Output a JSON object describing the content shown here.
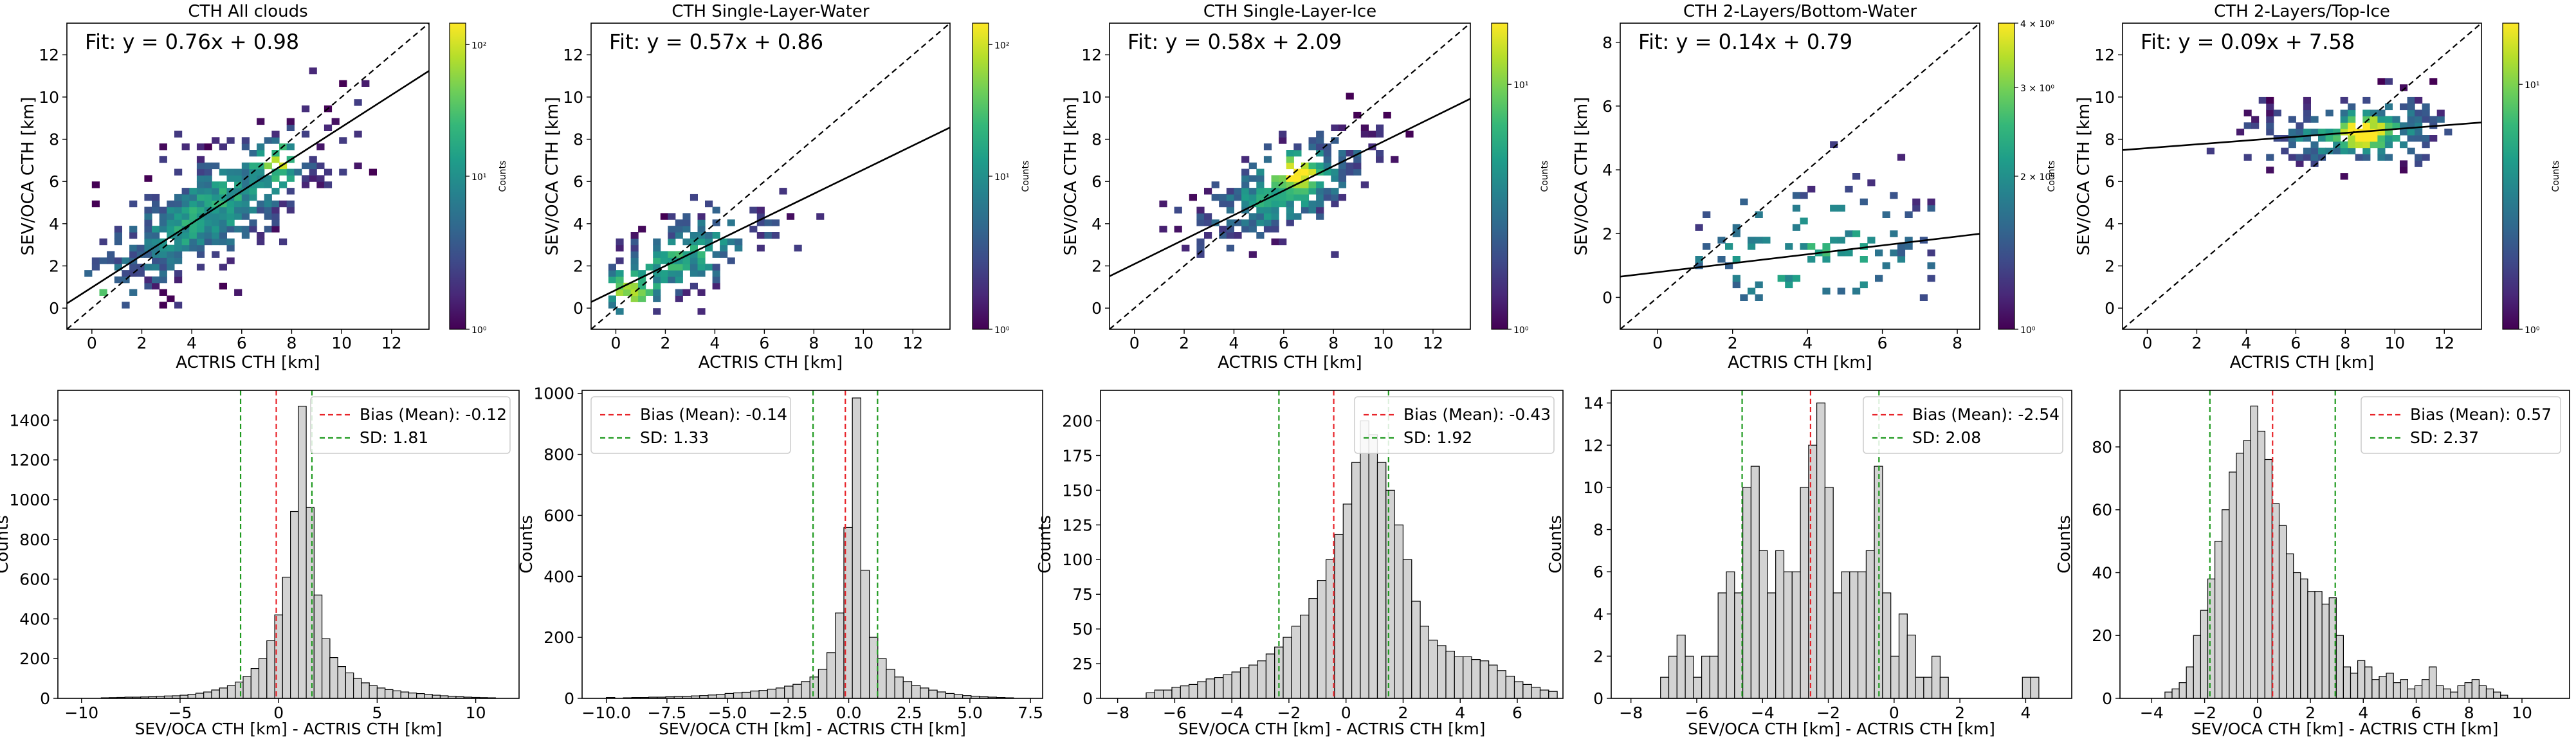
{
  "chart_data": [
    {
      "type": "heatmap",
      "title": "CTH All clouds",
      "xlabel": "ACTRIS CTH [km]",
      "ylabel": "SEV/OCA CTH [km]",
      "xlim": [
        -1,
        13.5
      ],
      "ylim": [
        -1,
        13.5
      ],
      "xticks": [
        "0",
        "2",
        "4",
        "6",
        "8",
        "10",
        "12"
      ],
      "xtick_values": [
        0,
        2,
        4,
        6,
        8,
        10,
        12
      ],
      "yticks": [
        "0",
        "2",
        "4",
        "6",
        "8",
        "10",
        "12"
      ],
      "ytick_values": [
        0,
        2,
        4,
        6,
        8,
        10,
        12
      ],
      "fit_text": "Fit: y = 0.76x + 0.98",
      "fit": {
        "slope": 0.76,
        "intercept": 0.98
      },
      "one_to_one_line": true,
      "colorbar": {
        "label": "Counts",
        "scale": "log",
        "cmap": "viridis",
        "ticks": [
          "10⁰",
          "10¹",
          "10²"
        ],
        "tick_fracs": [
          0,
          0.5,
          0.93
        ]
      },
      "cloud": {
        "x_range": [
          -0.3,
          11.8
        ],
        "y_range": [
          -0.3,
          11.2
        ],
        "cell_size": 0.3,
        "center_x": 4.7,
        "along_spread": 3.2,
        "cross_spread": 1.25,
        "density": 0.9,
        "hot_spots": [
          [
            0.5,
            0.6
          ],
          [
            7.5,
            7.0
          ]
        ]
      }
    },
    {
      "type": "heatmap",
      "title": "CTH Single-Layer-Water",
      "xlabel": "ACTRIS CTH [km]",
      "ylabel": "SEV/OCA CTH [km]",
      "xlim": [
        -1,
        13.5
      ],
      "ylim": [
        -1,
        13.5
      ],
      "xticks": [
        "0",
        "2",
        "4",
        "6",
        "8",
        "10",
        "12"
      ],
      "xtick_values": [
        0,
        2,
        4,
        6,
        8,
        10,
        12
      ],
      "yticks": [
        "0",
        "2",
        "4",
        "6",
        "8",
        "10",
        "12"
      ],
      "ytick_values": [
        0,
        2,
        4,
        6,
        8,
        10,
        12
      ],
      "fit_text": "Fit: y = 0.57x + 0.86",
      "fit": {
        "slope": 0.57,
        "intercept": 0.86
      },
      "one_to_one_line": true,
      "colorbar": {
        "label": "Counts",
        "scale": "log",
        "cmap": "viridis",
        "ticks": [
          "10⁰",
          "10¹",
          "10²"
        ],
        "tick_fracs": [
          0,
          0.5,
          0.93
        ]
      },
      "cloud": {
        "x_range": [
          -0.3,
          10.5
        ],
        "y_range": [
          -0.3,
          6.5
        ],
        "cell_size": 0.3,
        "center_x": 2.6,
        "along_spread": 2.6,
        "cross_spread": 1.0,
        "density": 0.75,
        "hot_spots": [
          [
            0.5,
            0.6
          ]
        ]
      }
    },
    {
      "type": "heatmap",
      "title": "CTH Single-Layer-Ice",
      "xlabel": "ACTRIS CTH [km]",
      "ylabel": "SEV/OCA CTH [km]",
      "xlim": [
        -1,
        13.5
      ],
      "ylim": [
        -1,
        13.5
      ],
      "xticks": [
        "0",
        "2",
        "4",
        "6",
        "8",
        "10",
        "12"
      ],
      "xtick_values": [
        0,
        2,
        4,
        6,
        8,
        10,
        12
      ],
      "yticks": [
        "0",
        "2",
        "4",
        "6",
        "8",
        "10",
        "12"
      ],
      "ytick_values": [
        0,
        2,
        4,
        6,
        8,
        10,
        12
      ],
      "fit_text": "Fit: y = 0.58x + 2.09",
      "fit": {
        "slope": 0.58,
        "intercept": 2.09
      },
      "one_to_one_line": true,
      "colorbar": {
        "label": "Counts",
        "scale": "log",
        "cmap": "viridis",
        "ticks": [
          "10⁰",
          "10¹"
        ],
        "tick_fracs": [
          0,
          0.8
        ]
      },
      "cloud": {
        "x_range": [
          1.0,
          11.0
        ],
        "y_range": [
          1.5,
          11.2
        ],
        "cell_size": 0.3,
        "center_x": 6.0,
        "along_spread": 2.4,
        "cross_spread": 1.1,
        "density": 0.85,
        "hot_spots": [
          [
            6.5,
            6.5
          ]
        ]
      }
    },
    {
      "type": "heatmap",
      "title": "CTH 2-Layers/Bottom-Water",
      "xlabel": "ACTRIS CTH [km]",
      "ylabel": "SEV/OCA CTH [km]",
      "xlim": [
        -1,
        8.6
      ],
      "ylim": [
        -1,
        8.6
      ],
      "xticks": [
        "0",
        "2",
        "4",
        "6",
        "8"
      ],
      "xtick_values": [
        0,
        2,
        4,
        6,
        8
      ],
      "yticks": [
        "0",
        "2",
        "4",
        "6",
        "8"
      ],
      "ytick_values": [
        0,
        2,
        4,
        6,
        8
      ],
      "fit_text": "Fit: y = 0.14x + 0.79",
      "fit": {
        "slope": 0.14,
        "intercept": 0.79
      },
      "one_to_one_line": true,
      "colorbar": {
        "label": "Counts",
        "scale": "log",
        "cmap": "viridis",
        "ticks": [
          "10⁰",
          "2 × 10⁰",
          "3 × 10⁰",
          "4 × 10⁰"
        ],
        "tick_fracs": [
          0,
          0.5,
          0.79,
          1.0
        ]
      },
      "cloud": {
        "x_range": [
          0.6,
          7.6
        ],
        "y_range": [
          -0.1,
          5.5
        ],
        "cell_size": 0.2,
        "center_x": 4.0,
        "along_spread": 2.5,
        "cross_spread": 1.3,
        "density": 0.18,
        "hot_spots": []
      }
    },
    {
      "type": "heatmap",
      "title": "CTH 2-Layers/Top-Ice",
      "xlabel": "ACTRIS CTH [km]",
      "ylabel": "SEV/OCA CTH [km]",
      "xlim": [
        -1,
        13.5
      ],
      "ylim": [
        -1,
        13.5
      ],
      "xticks": [
        "0",
        "2",
        "4",
        "6",
        "8",
        "10",
        "12"
      ],
      "xtick_values": [
        0,
        2,
        4,
        6,
        8,
        10,
        12
      ],
      "yticks": [
        "0",
        "2",
        "4",
        "6",
        "8",
        "10",
        "12"
      ],
      "ytick_values": [
        0,
        2,
        4,
        6,
        8,
        10,
        12
      ],
      "fit_text": "Fit: y = 0.09x + 7.58",
      "fit": {
        "slope": 0.09,
        "intercept": 7.58
      },
      "one_to_one_line": true,
      "colorbar": {
        "label": "Counts",
        "scale": "log",
        "cmap": "viridis",
        "ticks": [
          "10⁰",
          "10¹"
        ],
        "tick_fracs": [
          0,
          0.8
        ]
      },
      "cloud": {
        "x_range": [
          -0.3,
          12.3
        ],
        "y_range": [
          5.5,
          10.8
        ],
        "cell_size": 0.3,
        "center_x": 8.5,
        "along_spread": 2.4,
        "cross_spread": 0.9,
        "density": 0.8,
        "hot_spots": [
          [
            8.8,
            8.3
          ]
        ]
      }
    },
    {
      "type": "bar",
      "xlabel": "SEV/OCA CTH [km] - ACTRIS CTH [km]",
      "ylabel": "Counts",
      "xlim": [
        -11.2,
        12.2
      ],
      "ylim": [
        0,
        1550
      ],
      "xticks": [
        "−10",
        "−5",
        "0",
        "5",
        "10"
      ],
      "xtick_values": [
        -10,
        -5,
        0,
        5,
        10
      ],
      "yticks": [
        "0",
        "200",
        "400",
        "600",
        "800",
        "1000",
        "1200",
        "1400"
      ],
      "ytick_values": [
        0,
        200,
        400,
        600,
        800,
        1000,
        1200,
        1400
      ],
      "bins": {
        "start": -9.0,
        "width": 0.4
      },
      "values": [
        3,
        4,
        5,
        6,
        6,
        7,
        8,
        10,
        12,
        13,
        16,
        20,
        26,
        32,
        42,
        52,
        64,
        82,
        110,
        150,
        200,
        290,
        420,
        610,
        940,
        1470,
        960,
        520,
        300,
        205,
        160,
        128,
        100,
        78,
        64,
        52,
        44,
        38,
        32,
        27,
        24,
        20,
        16,
        13,
        10,
        8,
        6,
        5,
        4,
        3
      ],
      "bias": -0.12,
      "sd": 1.81,
      "legend": {
        "bias_label": "Bias (Mean): -0.12",
        "sd_label": "SD: 1.81",
        "placement": "top-right"
      }
    },
    {
      "type": "bar",
      "xlabel": "SEV/OCA CTH [km] - ACTRIS CTH [km]",
      "ylabel": "Counts",
      "xlim": [
        -11.0,
        8.0
      ],
      "ylim": [
        0,
        1010
      ],
      "xticks": [
        "−10.0",
        "−7.5",
        "−5.0",
        "−2.5",
        "0.0",
        "2.5",
        "5.0",
        "7.5"
      ],
      "xtick_values": [
        -10,
        -7.5,
        -5,
        -2.5,
        0,
        2.5,
        5,
        7.5
      ],
      "yticks": [
        "0",
        "200",
        "400",
        "600",
        "800",
        "1000"
      ],
      "ytick_values": [
        0,
        200,
        400,
        600,
        800,
        1000
      ],
      "bins": {
        "start": -10.0,
        "width": 0.35
      },
      "values": [
        3,
        0,
        2,
        3,
        3,
        4,
        4,
        5,
        6,
        6,
        8,
        9,
        11,
        13,
        16,
        18,
        20,
        24,
        26,
        30,
        34,
        40,
        46,
        55,
        70,
        95,
        150,
        280,
        560,
        985,
        420,
        200,
        130,
        95,
        70,
        55,
        42,
        34,
        27,
        21,
        16,
        12,
        9,
        7,
        5,
        4,
        3,
        2
      ],
      "bias": -0.14,
      "sd": 1.33,
      "legend": {
        "bias_label": "Bias (Mean): -0.14",
        "sd_label": "SD: 1.33",
        "placement": "top-left"
      }
    },
    {
      "type": "bar",
      "xlabel": "SEV/OCA CTH [km] - ACTRIS CTH [km]",
      "ylabel": "Counts",
      "xlim": [
        -8.6,
        7.6
      ],
      "ylim": [
        0,
        222
      ],
      "xticks": [
        "−8",
        "−6",
        "−4",
        "−2",
        "0",
        "2",
        "4",
        "6"
      ],
      "xtick_values": [
        -8,
        -6,
        -4,
        -2,
        0,
        2,
        4,
        6
      ],
      "yticks": [
        "0",
        "25",
        "50",
        "75",
        "100",
        "125",
        "150",
        "175",
        "200"
      ],
      "ytick_values": [
        0,
        25,
        50,
        75,
        100,
        125,
        150,
        175,
        200
      ],
      "bins": {
        "start": -7.0,
        "width": 0.3
      },
      "values": [
        4,
        6,
        6,
        8,
        9,
        10,
        12,
        14,
        15,
        17,
        19,
        22,
        24,
        27,
        32,
        37,
        44,
        52,
        60,
        72,
        85,
        100,
        118,
        140,
        170,
        200,
        190,
        170,
        150,
        125,
        100,
        70,
        52,
        42,
        38,
        34,
        30,
        30,
        28,
        27,
        24,
        20,
        16,
        12,
        10,
        8,
        6,
        5
      ],
      "bias": -0.43,
      "sd": 1.92,
      "legend": {
        "bias_label": "Bias (Mean): -0.43",
        "sd_label": "SD: 1.92",
        "placement": "top-right"
      }
    },
    {
      "type": "bar",
      "xlabel": "SEV/OCA CTH [km] - ACTRIS CTH [km]",
      "ylabel": "Counts",
      "xlim": [
        -8.6,
        5.4
      ],
      "ylim": [
        0,
        14.6
      ],
      "xticks": [
        "−8",
        "−6",
        "−4",
        "−2",
        "0",
        "2",
        "4"
      ],
      "xtick_values": [
        -8,
        -6,
        -4,
        -2,
        0,
        2,
        4
      ],
      "yticks": [
        "0",
        "2",
        "4",
        "6",
        "8",
        "10",
        "12",
        "14"
      ],
      "ytick_values": [
        0,
        2,
        4,
        6,
        8,
        10,
        12,
        14
      ],
      "bins": {
        "start": -7.1,
        "width": 0.25
      },
      "values": [
        1,
        2,
        3,
        2,
        1,
        2,
        2,
        5,
        6,
        5,
        10,
        11,
        7,
        5,
        7,
        6,
        6,
        10,
        12,
        14,
        10,
        5,
        6,
        6,
        6,
        7,
        11,
        5,
        2,
        4,
        3,
        1,
        1,
        2,
        1,
        0,
        0,
        0,
        0,
        0,
        0,
        0,
        0,
        0,
        1,
        1
      ],
      "bias": -2.54,
      "sd": 2.08,
      "legend": {
        "bias_label": "Bias (Mean): -2.54",
        "sd_label": "SD: 2.08",
        "placement": "top-right"
      }
    },
    {
      "type": "bar",
      "xlabel": "SEV/OCA CTH [km] - ACTRIS CTH [km]",
      "ylabel": "Counts",
      "xlim": [
        -5.2,
        11.8
      ],
      "ylim": [
        0,
        98
      ],
      "xticks": [
        "−4",
        "−2",
        "0",
        "2",
        "4",
        "6",
        "8",
        "10"
      ],
      "xtick_values": [
        -4,
        -2,
        0,
        2,
        4,
        6,
        8,
        10
      ],
      "yticks": [
        "0",
        "20",
        "40",
        "60",
        "80"
      ],
      "ytick_values": [
        0,
        20,
        40,
        60,
        80
      ],
      "bins": {
        "start": -3.5,
        "width": 0.27
      },
      "values": [
        2,
        3,
        5,
        10,
        20,
        28,
        38,
        50,
        60,
        72,
        78,
        82,
        93,
        85,
        76,
        62,
        55,
        46,
        40,
        38,
        34,
        34,
        30,
        32,
        20,
        10,
        8,
        12,
        10,
        6,
        7,
        8,
        5,
        6,
        3,
        4,
        6,
        10,
        4,
        3,
        2,
        4,
        5,
        6,
        4,
        3,
        2,
        1
      ],
      "bias": 0.57,
      "sd": 2.37,
      "legend": {
        "bias_label": "Bias (Mean): 0.57",
        "sd_label": "SD: 2.37",
        "placement": "top-right"
      }
    }
  ]
}
